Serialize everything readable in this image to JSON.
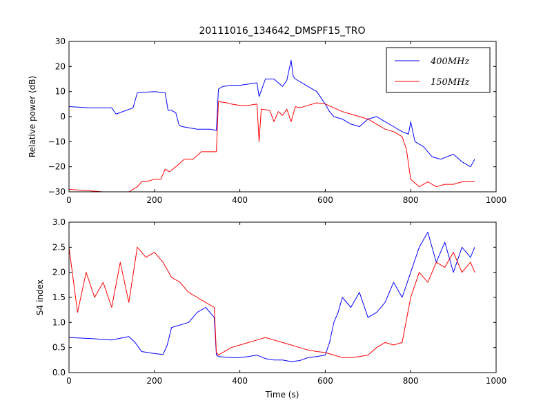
{
  "chart_data": [
    {
      "type": "line",
      "title": "20111016_134642_DMSPF15_TRO",
      "xlabel": "",
      "ylabel": "Relative power (dB)",
      "xlim": [
        0,
        1000
      ],
      "ylim": [
        -30,
        30
      ],
      "xticks": [
        "0",
        "200",
        "400",
        "600",
        "800",
        "1000"
      ],
      "yticks": [
        "−30",
        "−20",
        "−10",
        "0",
        "10",
        "20",
        "30"
      ],
      "legend_position": "top-right",
      "series": [
        {
          "name": "400MHz",
          "legend_label": "400MHz",
          "color": "#0000ff",
          "x": [
            0,
            50,
            100,
            110,
            150,
            160,
            200,
            225,
            232,
            240,
            250,
            258,
            265,
            300,
            330,
            345,
            350,
            360,
            380,
            400,
            440,
            445,
            460,
            480,
            500,
            510,
            520,
            525,
            530,
            560,
            580,
            600,
            610,
            620,
            640,
            660,
            680,
            700,
            720,
            740,
            760,
            780,
            795,
            800,
            810,
            830,
            850,
            870,
            900,
            920,
            940,
            950
          ],
          "y": [
            4,
            3.5,
            3.5,
            1,
            3.5,
            9.5,
            10,
            9.5,
            2.5,
            2.5,
            1.5,
            -3.5,
            -4,
            -5,
            -5,
            -5.5,
            11,
            12,
            12.5,
            12.5,
            13.5,
            8,
            15,
            15,
            12,
            14.5,
            22.5,
            16,
            15,
            12,
            10,
            5,
            2,
            0,
            -1,
            -3,
            -4,
            -1,
            0,
            -2,
            -4,
            -6,
            -7,
            -2,
            -10,
            -12,
            -16,
            -17,
            -15,
            -18,
            -20,
            -17
          ]
        },
        {
          "name": "150MHz",
          "legend_label": "150MHz",
          "color": "#ff0000",
          "x": [
            0,
            40,
            80,
            100,
            140,
            160,
            170,
            180,
            200,
            215,
            225,
            235,
            250,
            270,
            290,
            310,
            330,
            345,
            350,
            370,
            380,
            400,
            420,
            440,
            445,
            450,
            470,
            480,
            490,
            500,
            510,
            520,
            530,
            540,
            560,
            580,
            600,
            620,
            640,
            660,
            680,
            700,
            720,
            740,
            760,
            780,
            790,
            800,
            820,
            840,
            860,
            880,
            900,
            920,
            940,
            950
          ],
          "y": [
            -29,
            -29.5,
            -30,
            -30,
            -30,
            -28,
            -26,
            -26,
            -25,
            -25,
            -21,
            -22,
            -20,
            -17,
            -17,
            -14,
            -14,
            -14,
            6,
            5.5,
            5,
            4.5,
            4.5,
            5,
            -10,
            3,
            2.5,
            -2,
            2,
            0.5,
            3,
            -2,
            4,
            3.5,
            4.5,
            5.5,
            5,
            3.5,
            2,
            1,
            0,
            -1,
            -3,
            -5,
            -6,
            -8,
            -13,
            -25,
            -28,
            -26,
            -28,
            -27,
            -27,
            -26,
            -26,
            -26
          ]
        }
      ]
    },
    {
      "type": "line",
      "title": "",
      "xlabel": "Time (s)",
      "ylabel": "S4 index",
      "xlim": [
        0,
        1000
      ],
      "ylim": [
        0,
        3
      ],
      "xticks": [
        "0",
        "200",
        "400",
        "600",
        "800",
        "1000"
      ],
      "yticks": [
        "0.0",
        "0.5",
        "1.0",
        "1.5",
        "2.0",
        "2.5",
        "3.0"
      ],
      "series": [
        {
          "name": "400MHz",
          "color": "#0000ff",
          "x": [
            0,
            50,
            100,
            140,
            155,
            170,
            200,
            220,
            230,
            240,
            260,
            280,
            300,
            320,
            340,
            345,
            350,
            380,
            400,
            420,
            440,
            460,
            480,
            500,
            520,
            540,
            560,
            580,
            600,
            610,
            620,
            630,
            640,
            660,
            680,
            700,
            720,
            740,
            760,
            780,
            800,
            820,
            840,
            860,
            880,
            900,
            920,
            940,
            950
          ],
          "y": [
            0.7,
            0.68,
            0.65,
            0.72,
            0.6,
            0.42,
            0.38,
            0.36,
            0.55,
            0.9,
            0.95,
            1.0,
            1.2,
            1.3,
            1.1,
            0.35,
            0.32,
            0.3,
            0.3,
            0.32,
            0.35,
            0.28,
            0.25,
            0.25,
            0.22,
            0.24,
            0.3,
            0.32,
            0.35,
            0.6,
            1.0,
            1.2,
            1.5,
            1.3,
            1.6,
            1.1,
            1.2,
            1.4,
            1.8,
            1.5,
            2.0,
            2.5,
            2.8,
            2.2,
            2.6,
            2.0,
            2.5,
            2.3,
            2.5
          ]
        },
        {
          "name": "150MHz",
          "color": "#ff0000",
          "x": [
            0,
            20,
            40,
            60,
            80,
            100,
            120,
            140,
            160,
            180,
            200,
            220,
            240,
            260,
            280,
            300,
            320,
            340,
            345,
            350,
            380,
            400,
            420,
            440,
            460,
            480,
            500,
            520,
            540,
            560,
            580,
            600,
            620,
            640,
            660,
            680,
            700,
            720,
            740,
            760,
            780,
            800,
            820,
            840,
            860,
            880,
            900,
            920,
            940,
            950
          ],
          "y": [
            2.5,
            1.2,
            2.0,
            1.5,
            1.8,
            1.3,
            2.2,
            1.4,
            2.5,
            2.3,
            2.4,
            2.2,
            1.9,
            1.8,
            1.6,
            1.5,
            1.4,
            1.3,
            0.4,
            0.35,
            0.5,
            0.55,
            0.6,
            0.65,
            0.7,
            0.65,
            0.6,
            0.55,
            0.5,
            0.45,
            0.42,
            0.4,
            0.35,
            0.3,
            0.3,
            0.32,
            0.35,
            0.5,
            0.6,
            0.55,
            0.6,
            1.5,
            2.0,
            1.8,
            2.2,
            2.1,
            2.4,
            2.0,
            2.2,
            2.0
          ]
        }
      ]
    }
  ]
}
